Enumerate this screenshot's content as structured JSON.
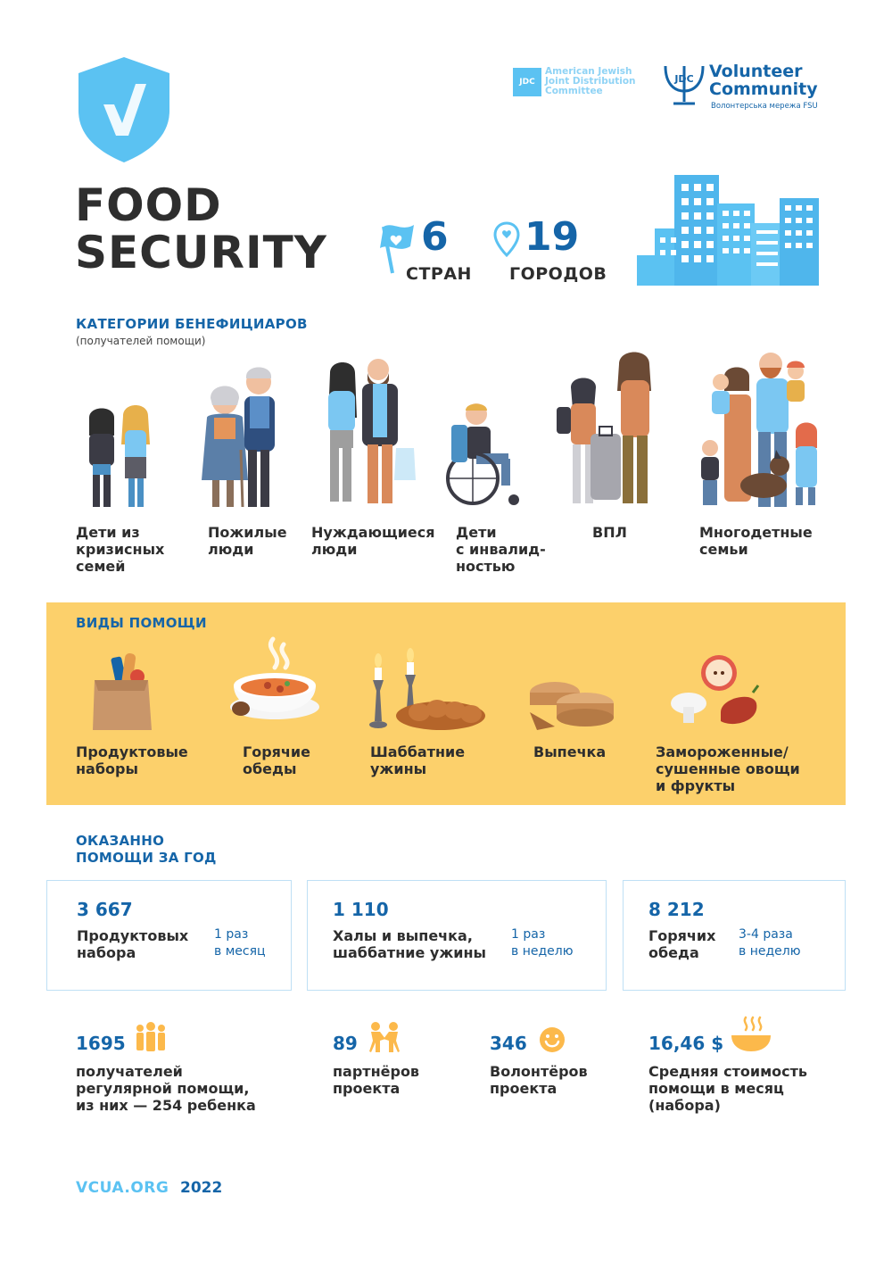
{
  "header": {
    "title_line1": "FOOD",
    "title_line2": "SECURITY",
    "countries_value": "6",
    "countries_label": "СТРАН",
    "cities_value": "19",
    "cities_label": "ГОРОДОВ",
    "logo1_line1": "American Jewish",
    "logo1_line2": "Joint Distribution",
    "logo1_line3": "Committee",
    "logo2_line1": "Volunteer",
    "logo2_line2": "Community",
    "logo2_sub": "Волонтерська мережа FSU",
    "logo_mark": "JDC"
  },
  "beneficiaries": {
    "heading": "КАТЕГОРИИ БЕНЕФИЦИАРОВ",
    "subheading": "(получателей помощи)",
    "items": [
      {
        "label": "Дети из\nкризисных\nсемей"
      },
      {
        "label": "Пожилые\nлюди"
      },
      {
        "label": "Нуждающиеся\nлюди"
      },
      {
        "label": "Дети\nс инвалид-\nностью"
      },
      {
        "label": "ВПЛ"
      },
      {
        "label": "Многодетные\nсемьи"
      }
    ]
  },
  "aid_types": {
    "heading": "ВИДЫ ПОМОЩИ",
    "items": [
      {
        "label": "Продуктовые\nнаборы"
      },
      {
        "label": "Горячие\nобеды"
      },
      {
        "label": "Шаббатние\nужины"
      },
      {
        "label": "Выпечка"
      },
      {
        "label": "Замороженные/\nсушенные овощи\nи фрукты"
      }
    ]
  },
  "yearly": {
    "heading_line1": "ОКАЗАННО",
    "heading_line2": "ПОМОЩИ ЗА ГОД",
    "boxes": [
      {
        "value": "3 667",
        "label": "Продуктовых\nнабора",
        "freq": "1 раз\nв месяц"
      },
      {
        "value": "1 110",
        "label": "Халы и выпечка,\nшаббатние ужины",
        "freq": "1 раз\nв неделю"
      },
      {
        "value": "8 212",
        "label": "Горячих\nобеда",
        "freq": "3-4 раза\nв неделю"
      }
    ]
  },
  "stats": [
    {
      "value": "1695",
      "label": "получателей\nрегулярной помощи,\nиз них — 254 ребенка",
      "icon": "people-group-icon"
    },
    {
      "value": "89",
      "label": "партнёров\nпроекта",
      "icon": "handshake-people-icon"
    },
    {
      "value": "346",
      "label": "Волонтёров\nпроекта",
      "icon": "smile-icon"
    },
    {
      "value": "16,46 $",
      "label": "Средняя стоимость\nпомощи в месяц\n(набора)",
      "icon": "hot-bowl-icon"
    }
  ],
  "footer": {
    "site": "VCUA.ORG",
    "year": "2022"
  },
  "colors": {
    "brand_blue": "#1565a8",
    "light_blue": "#5bc2f2",
    "yellow": "#fcd06b",
    "text_dark": "#2e2e2e"
  }
}
